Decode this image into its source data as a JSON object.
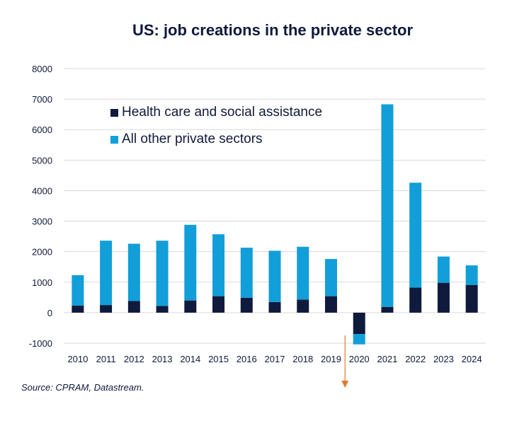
{
  "chart_data": {
    "type": "bar",
    "stacked": true,
    "title": "US: job creations in the private sector",
    "xlabel": "",
    "ylabel": "",
    "ylim": [
      -1000,
      8000
    ],
    "yticks": [
      -1000,
      0,
      1000,
      2000,
      3000,
      4000,
      5000,
      6000,
      7000,
      8000
    ],
    "grid": true,
    "legend_position": "top-left",
    "categories": [
      "2010",
      "2011",
      "2012",
      "2013",
      "2014",
      "2015",
      "2016",
      "2017",
      "2018",
      "2019",
      "2020",
      "2021",
      "2022",
      "2023",
      "2024"
    ],
    "series": [
      {
        "name": "Health care and social assistance",
        "color": "#0f1a3c",
        "values": [
          230,
          250,
          380,
          220,
          400,
          540,
          490,
          350,
          430,
          540,
          -700,
          190,
          820,
          980,
          910
        ]
      },
      {
        "name": "All other private sectors",
        "color": "#129fd9",
        "values": [
          1000,
          2110,
          1880,
          2140,
          2480,
          2030,
          1640,
          1680,
          1730,
          1220,
          -340,
          6640,
          3440,
          860,
          640
        ]
      }
    ],
    "annotation": {
      "type": "arrow",
      "color": "#e07b2c",
      "category": "2020",
      "direction": "down"
    }
  },
  "source": "Source: CPRAM, Datastream."
}
